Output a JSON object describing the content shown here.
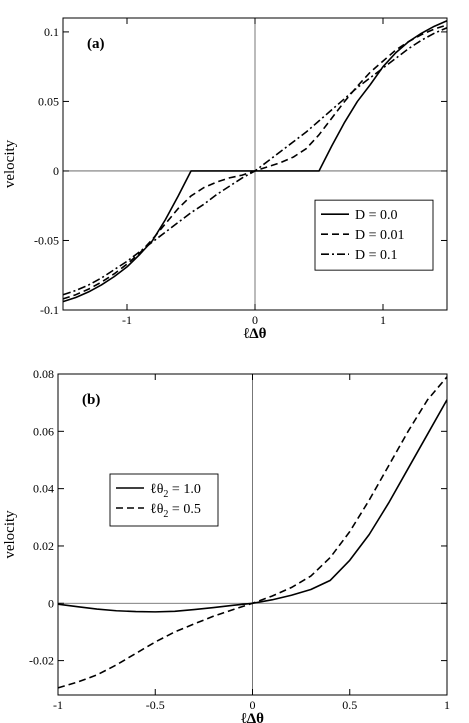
{
  "chart_data": [
    {
      "type": "line",
      "panel_label": "(a)",
      "xlabel": "ℓΔθ",
      "ylabel": "velocity",
      "xlim": [
        -1.5,
        1.5
      ],
      "ylim": [
        -0.1,
        0.11
      ],
      "xticks": [
        -1,
        0,
        1
      ],
      "xtick_labels": [
        "-1",
        "0",
        "1"
      ],
      "yticks": [
        -0.1,
        -0.05,
        0,
        0.05,
        0.1
      ],
      "ytick_labels": [
        "-0.1",
        "-0.05",
        "0",
        "0.05",
        "0.1"
      ],
      "grid": false,
      "zero_lines": true,
      "legend_position": "lower-right",
      "series": [
        {
          "name": "D = 0.0",
          "line_style": "solid",
          "x": [
            -1.5,
            -1.4,
            -1.3,
            -1.2,
            -1.1,
            -1.0,
            -0.9,
            -0.8,
            -0.7,
            -0.6,
            -0.5,
            -0.4,
            -0.3,
            -0.2,
            -0.1,
            0.0,
            0.1,
            0.2,
            0.3,
            0.4,
            0.5,
            0.6,
            0.7,
            0.8,
            0.9,
            1.0,
            1.1,
            1.2,
            1.3,
            1.4,
            1.5
          ],
          "y": [
            -0.094,
            -0.091,
            -0.087,
            -0.082,
            -0.076,
            -0.069,
            -0.06,
            -0.05,
            -0.035,
            -0.018,
            0.0,
            0.0,
            0.0,
            0.0,
            0.0,
            0.0,
            0.0,
            0.0,
            0.0,
            0.0,
            0.0,
            0.018,
            0.035,
            0.05,
            0.062,
            0.075,
            0.085,
            0.093,
            0.099,
            0.104,
            0.108
          ]
        },
        {
          "name": "D = 0.01",
          "line_style": "dashed",
          "x": [
            -1.5,
            -1.4,
            -1.3,
            -1.2,
            -1.1,
            -1.0,
            -0.9,
            -0.8,
            -0.7,
            -0.6,
            -0.5,
            -0.4,
            -0.3,
            -0.2,
            -0.1,
            0.0,
            0.1,
            0.2,
            0.3,
            0.4,
            0.5,
            0.6,
            0.7,
            0.8,
            0.9,
            1.0,
            1.1,
            1.2,
            1.3,
            1.4,
            1.5
          ],
          "y": [
            -0.092,
            -0.089,
            -0.085,
            -0.08,
            -0.074,
            -0.067,
            -0.059,
            -0.049,
            -0.038,
            -0.027,
            -0.018,
            -0.012,
            -0.008,
            -0.005,
            -0.003,
            0.0,
            0.003,
            0.006,
            0.01,
            0.016,
            0.026,
            0.038,
            0.05,
            0.061,
            0.071,
            0.079,
            0.087,
            0.093,
            0.098,
            0.102,
            0.105
          ]
        },
        {
          "name": "D = 0.1",
          "line_style": "dash-dot",
          "x": [
            -1.5,
            -1.4,
            -1.3,
            -1.2,
            -1.1,
            -1.0,
            -0.9,
            -0.8,
            -0.7,
            -0.6,
            -0.5,
            -0.4,
            -0.3,
            -0.2,
            -0.1,
            0.0,
            0.1,
            0.2,
            0.3,
            0.4,
            0.5,
            0.6,
            0.7,
            0.8,
            0.9,
            1.0,
            1.1,
            1.2,
            1.3,
            1.4,
            1.5
          ],
          "y": [
            -0.089,
            -0.086,
            -0.082,
            -0.077,
            -0.071,
            -0.065,
            -0.058,
            -0.051,
            -0.044,
            -0.037,
            -0.03,
            -0.024,
            -0.017,
            -0.011,
            -0.005,
            0.0,
            0.007,
            0.014,
            0.021,
            0.028,
            0.036,
            0.044,
            0.052,
            0.06,
            0.067,
            0.074,
            0.081,
            0.088,
            0.094,
            0.099,
            0.103
          ]
        }
      ]
    },
    {
      "type": "line",
      "panel_label": "(b)",
      "xlabel": "ℓΔθ",
      "ylabel": "velocity",
      "xlim": [
        -1,
        1
      ],
      "ylim": [
        -0.032,
        0.08
      ],
      "xticks": [
        -1,
        -0.5,
        0,
        0.5,
        1
      ],
      "xtick_labels": [
        "-1",
        "-0.5",
        "0",
        "0.5",
        "1"
      ],
      "yticks": [
        -0.02,
        0,
        0.02,
        0.04,
        0.06,
        0.08
      ],
      "ytick_labels": [
        "-0.02",
        "0",
        "0.02",
        "0.04",
        "0.06",
        "0.08"
      ],
      "grid": false,
      "zero_lines": true,
      "legend_position": "upper-left",
      "series": [
        {
          "name": "ℓθ₂ = 1.0",
          "legend_label": {
            "pre": "ℓθ",
            "sub": "2",
            "post": " = 1.0"
          },
          "line_style": "solid",
          "x": [
            -1.0,
            -0.9,
            -0.8,
            -0.7,
            -0.6,
            -0.5,
            -0.4,
            -0.3,
            -0.2,
            -0.1,
            0.0,
            0.1,
            0.2,
            0.3,
            0.4,
            0.5,
            0.6,
            0.7,
            0.8,
            0.9,
            1.0
          ],
          "y": [
            -0.0003,
            -0.0012,
            -0.002,
            -0.0026,
            -0.0029,
            -0.003,
            -0.0028,
            -0.0022,
            -0.0015,
            -0.0007,
            0.0,
            0.0012,
            0.0028,
            0.0048,
            0.008,
            0.015,
            0.024,
            0.035,
            0.047,
            0.059,
            0.071
          ]
        },
        {
          "name": "ℓθ₂ = 0.5",
          "legend_label": {
            "pre": "ℓθ",
            "sub": "2",
            "post": " = 0.5"
          },
          "line_style": "dashed",
          "x": [
            -1.0,
            -0.9,
            -0.8,
            -0.7,
            -0.6,
            -0.5,
            -0.4,
            -0.3,
            -0.2,
            -0.1,
            0.0,
            0.1,
            0.2,
            0.3,
            0.4,
            0.5,
            0.6,
            0.7,
            0.8,
            0.9,
            1.0
          ],
          "y": [
            -0.0295,
            -0.0275,
            -0.025,
            -0.0215,
            -0.0175,
            -0.0135,
            -0.01,
            -0.0072,
            -0.0045,
            -0.0022,
            0.0,
            0.0025,
            0.0055,
            0.0095,
            0.016,
            0.025,
            0.036,
            0.048,
            0.06,
            0.071,
            0.079
          ]
        }
      ]
    }
  ]
}
